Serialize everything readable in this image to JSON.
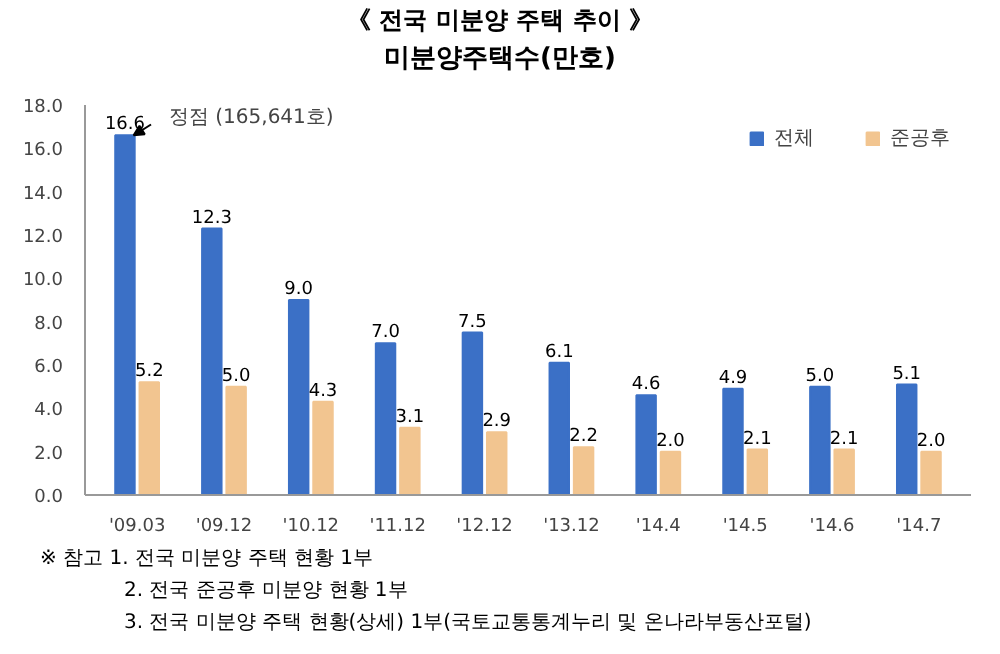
{
  "chart_data": {
    "type": "bar",
    "title": "《 전국 미분양 주택 추이 》",
    "subtitle": "미분양주택수(만호)",
    "categories": [
      "'09.03",
      "'09.12",
      "'10.12",
      "'11.12",
      "'12.12",
      "'13.12",
      "'14.4",
      "'14.5",
      "'14.6",
      "'14.7"
    ],
    "series": [
      {
        "name": "전체",
        "color": "#3b70c6",
        "values": [
          16.6,
          12.3,
          9.0,
          7.0,
          7.5,
          6.1,
          4.6,
          4.9,
          5.0,
          5.1
        ],
        "value_labels": [
          "16.6",
          "12.3",
          "9.0",
          "7.0",
          "7.5",
          "6.1",
          "4.6",
          "4.9",
          "5.0",
          "5.1"
        ]
      },
      {
        "name": "준공후",
        "color": "#f2c590",
        "values": [
          5.2,
          5.0,
          4.3,
          3.1,
          2.9,
          2.2,
          2.0,
          2.1,
          2.1,
          2.0
        ],
        "value_labels": [
          "5.2",
          "5.0",
          "4.3",
          "3.1",
          "2.9",
          "2.2",
          "2.0",
          "2.1",
          "2.1",
          "2.0"
        ]
      }
    ],
    "ylim": [
      0,
      18
    ],
    "yticks": [
      {
        "value": 0,
        "label": "0.0"
      },
      {
        "value": 2,
        "label": "2.0"
      },
      {
        "value": 4,
        "label": "4.0"
      },
      {
        "value": 6,
        "label": "6.0"
      },
      {
        "value": 8,
        "label": "8.0"
      },
      {
        "value": 10,
        "label": "10.0"
      },
      {
        "value": 12,
        "label": "12.0"
      },
      {
        "value": 14,
        "label": "14.0"
      },
      {
        "value": 16,
        "label": "16.0"
      },
      {
        "value": 18,
        "label": "18.0"
      }
    ],
    "grid": false,
    "legend": "top right",
    "annotations": [
      {
        "text": "정점 (165,641호)",
        "x": "'09.03",
        "y": 16.6
      },
      "※ 참고 1. 전국 미분양 주택 현황 1부",
      "2. 전국 준공후 미분양 현황 1부",
      "3. 전국 미분양 주택 현황(상세) 1부(국토교통통계누리 및 온나라부동산포털)"
    ]
  }
}
